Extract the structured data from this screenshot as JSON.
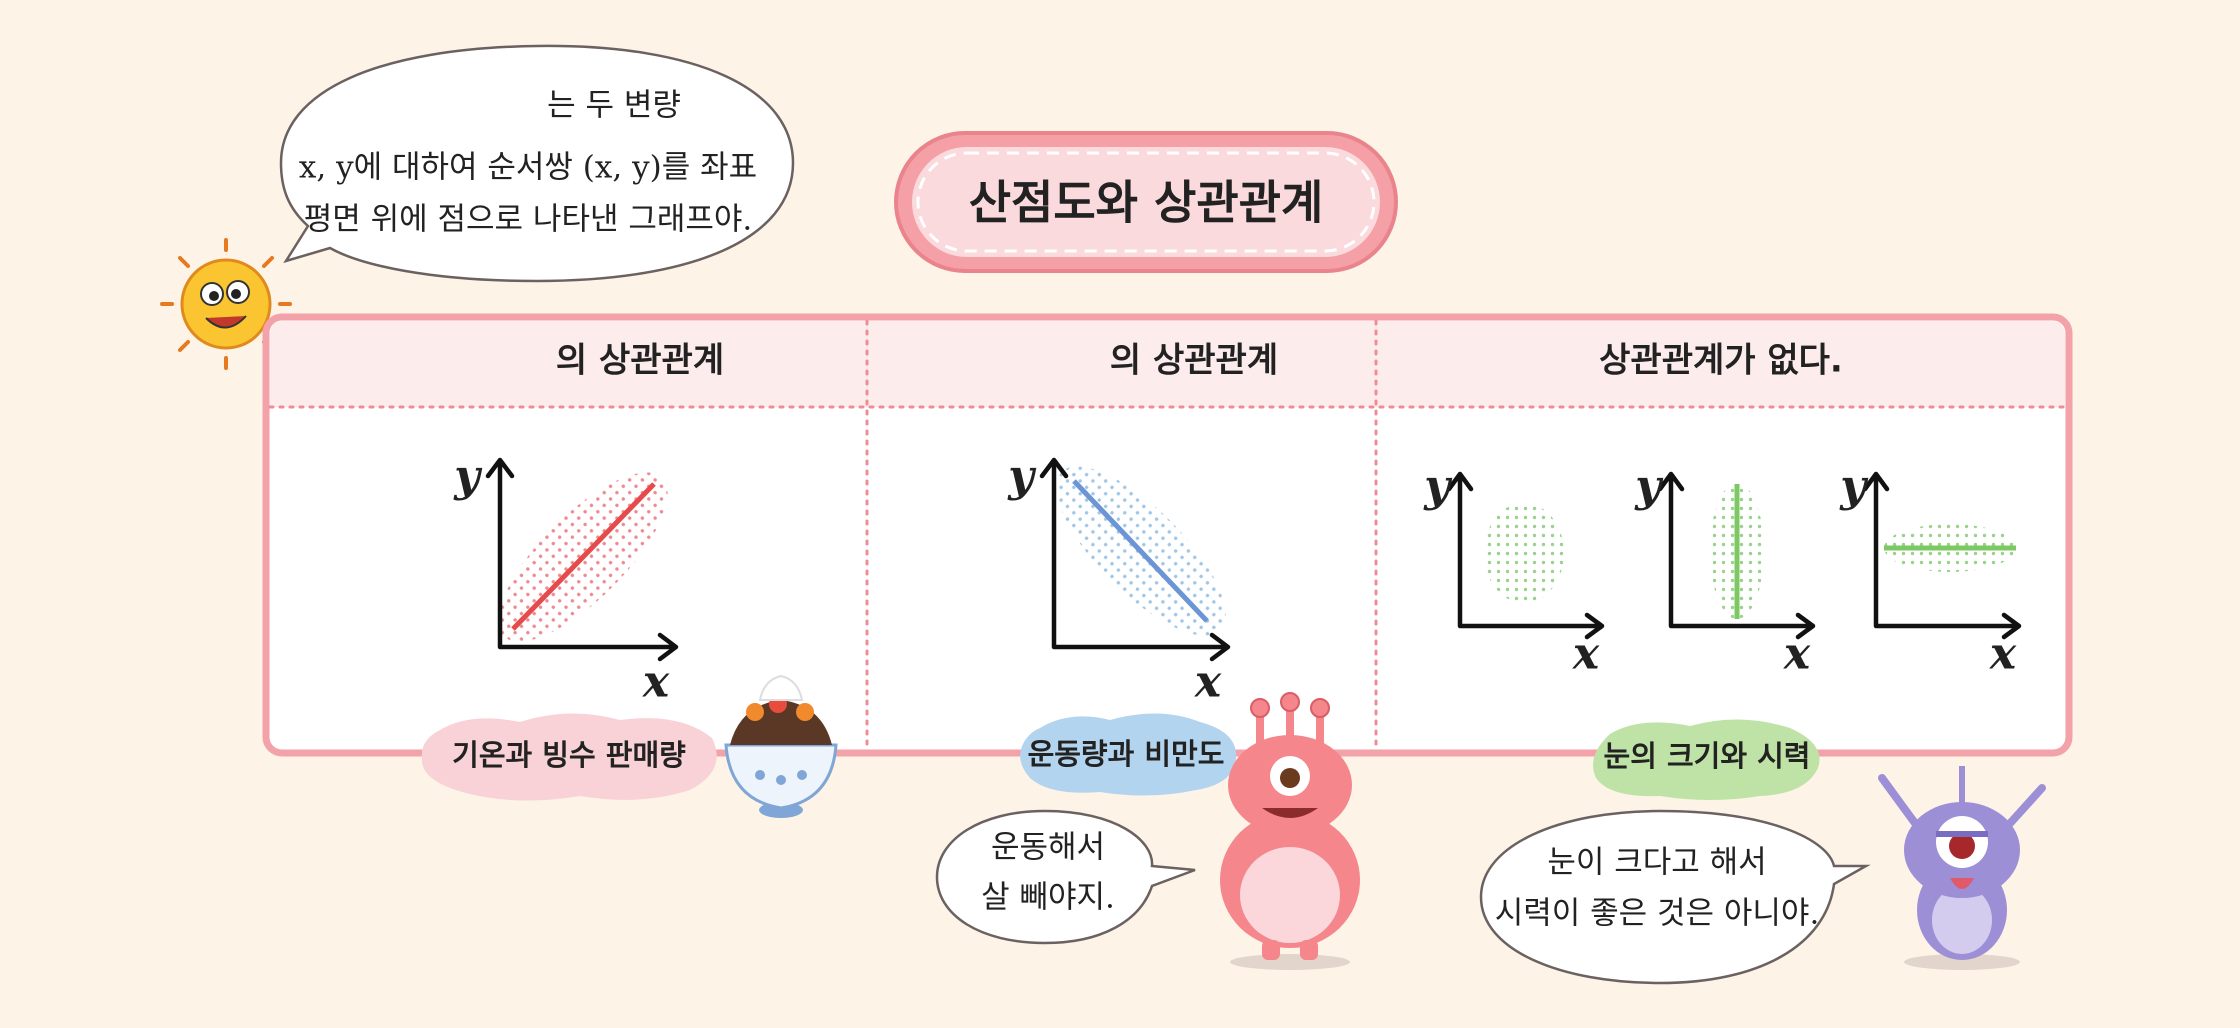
{
  "intro_bubble": {
    "lines": [
      "는 두 변량",
      "x, y에 대하여 순서쌍 (x, y)를 좌표",
      "평면 위에 점으로 나타낸 그래프야."
    ]
  },
  "title": "산점도와 상관관계",
  "columns": [
    {
      "header": "의 상관관계",
      "tag": "기온과 빙수 판매량"
    },
    {
      "header": "의 상관관계",
      "tag": "운동량과 비만도"
    },
    {
      "header": "상관관계가 없다.",
      "tag": "눈의 크기와 시력"
    }
  ],
  "axis_labels": {
    "x": "x",
    "y": "y"
  },
  "speech": [
    {
      "lines": [
        "운동해서",
        "살 빼야지."
      ]
    },
    {
      "lines": [
        "눈이 크다고 해서",
        "시력이 좋은 것은 아니야."
      ]
    }
  ]
}
